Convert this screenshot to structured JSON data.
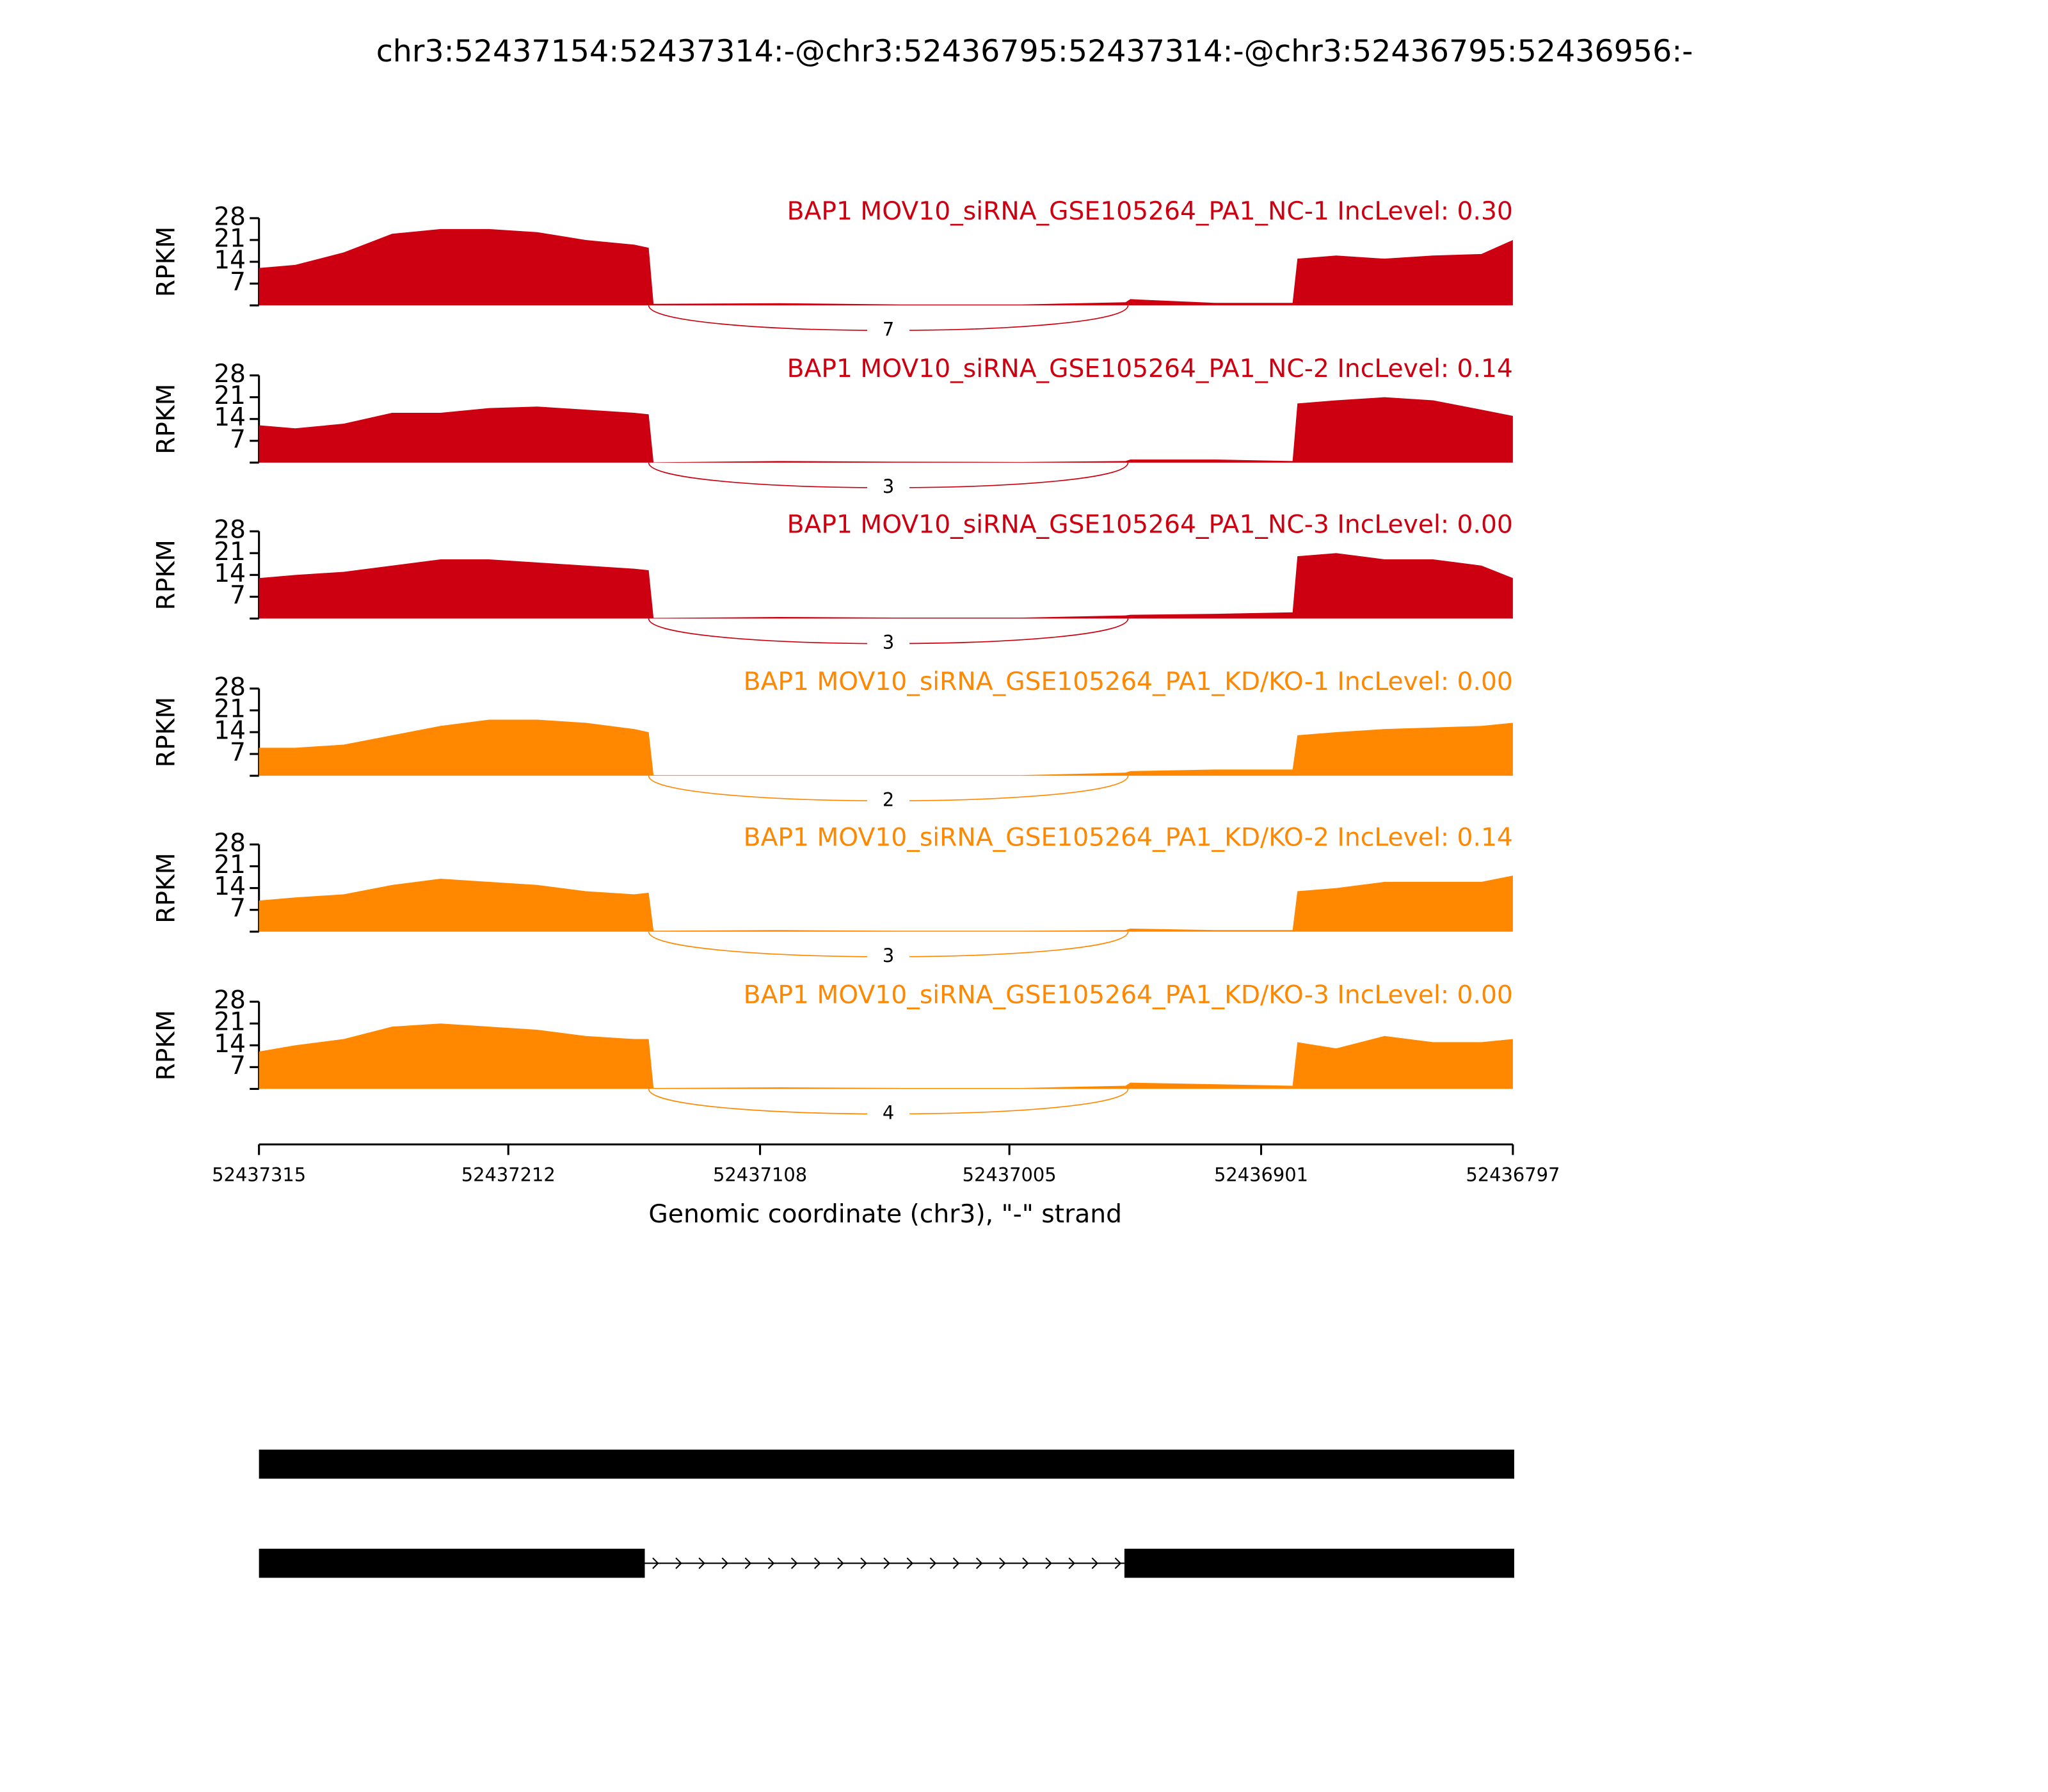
{
  "title": "chr3:52437154:52437314:-@chr3:52436795:52437314:-@chr3:52436795:52436956:-",
  "x_axis": {
    "label": "Genomic coordinate (chr3), \"-\" strand",
    "xlim": [
      52437315,
      52436797
    ],
    "xticks": [
      52437315,
      52437212,
      52437108,
      52437005,
      52436901,
      52436797
    ]
  },
  "chart_data": [
    {
      "type": "area",
      "title": "BAP1 MOV10_siRNA_GSE105264_PA1_NC-1 IncLevel: 0.30",
      "ylabel": "RPKM",
      "color": "#cc0011",
      "ylim": [
        0,
        28
      ],
      "yticks": [
        7,
        14,
        21,
        28
      ],
      "x": [
        52437315,
        52437300,
        52437280,
        52437260,
        52437240,
        52437220,
        52437200,
        52437180,
        52437160,
        52437154,
        52437152,
        52437100,
        52437050,
        52437000,
        52436957,
        52436955,
        52436920,
        52436888,
        52436886,
        52436870,
        52436850,
        52436830,
        52436810,
        52436797
      ],
      "values": [
        12,
        13,
        17,
        23,
        24.5,
        24.5,
        23.5,
        21,
        19.5,
        18.5,
        0.5,
        0.7,
        0.3,
        0.3,
        1,
        2,
        0.8,
        0.8,
        15,
        16,
        15,
        16,
        16.5,
        21
      ],
      "junctions": [
        {
          "start": 52437154,
          "end": 52436956,
          "count": 7
        }
      ]
    },
    {
      "type": "area",
      "title": "BAP1 MOV10_siRNA_GSE105264_PA1_NC-2 IncLevel: 0.14",
      "ylabel": "RPKM",
      "color": "#cc0011",
      "ylim": [
        0,
        28
      ],
      "yticks": [
        7,
        14,
        21,
        28
      ],
      "x": [
        52437315,
        52437300,
        52437280,
        52437260,
        52437240,
        52437220,
        52437200,
        52437180,
        52437160,
        52437154,
        52437152,
        52437100,
        52437050,
        52437000,
        52436957,
        52436955,
        52436920,
        52436888,
        52436886,
        52436870,
        52436850,
        52436830,
        52436810,
        52436797
      ],
      "values": [
        12,
        11,
        12.5,
        16,
        16,
        17.5,
        18,
        17,
        16,
        15.5,
        0.1,
        0.5,
        0.3,
        0.2,
        0.5,
        1,
        1,
        0.5,
        19,
        20,
        21,
        20,
        17,
        15
      ],
      "junctions": [
        {
          "start": 52437154,
          "end": 52436956,
          "count": 3
        }
      ]
    },
    {
      "type": "area",
      "title": "BAP1 MOV10_siRNA_GSE105264_PA1_NC-3 IncLevel: 0.00",
      "ylabel": "RPKM",
      "color": "#cc0011",
      "ylim": [
        0,
        28
      ],
      "yticks": [
        7,
        14,
        21,
        28
      ],
      "x": [
        52437315,
        52437300,
        52437280,
        52437260,
        52437240,
        52437220,
        52437200,
        52437180,
        52437160,
        52437154,
        52437152,
        52437100,
        52437050,
        52437000,
        52436957,
        52436955,
        52436920,
        52436888,
        52436886,
        52436870,
        52436850,
        52436830,
        52436810,
        52436797
      ],
      "values": [
        13,
        14,
        15,
        17,
        19,
        19,
        18,
        17,
        16,
        15.5,
        0.2,
        0.5,
        0.3,
        0.3,
        1,
        1.2,
        1.5,
        2,
        20,
        21,
        19,
        19,
        17,
        13
      ],
      "junctions": [
        {
          "start": 52437154,
          "end": 52436956,
          "count": 3
        }
      ]
    },
    {
      "type": "area",
      "title": "BAP1 MOV10_siRNA_GSE105264_PA1_KD/KO-1 IncLevel: 0.00",
      "ylabel": "RPKM",
      "color": "#ff8800",
      "ylim": [
        0,
        28
      ],
      "yticks": [
        7,
        14,
        21,
        28
      ],
      "x": [
        52437315,
        52437300,
        52437280,
        52437260,
        52437240,
        52437220,
        52437200,
        52437180,
        52437160,
        52437154,
        52437152,
        52437100,
        52437050,
        52437000,
        52436957,
        52436955,
        52436920,
        52436888,
        52436886,
        52436870,
        52436850,
        52436830,
        52436810,
        52436797
      ],
      "values": [
        9,
        9,
        10,
        13,
        16,
        18,
        18,
        17,
        15,
        14,
        0.2,
        0.2,
        0.2,
        0.2,
        1,
        1.5,
        2,
        2,
        13,
        14,
        15,
        15.5,
        16,
        17
      ],
      "junctions": [
        {
          "start": 52437154,
          "end": 52436956,
          "count": 2
        }
      ]
    },
    {
      "type": "area",
      "title": "BAP1 MOV10_siRNA_GSE105264_PA1_KD/KO-2 IncLevel: 0.14",
      "ylabel": "RPKM",
      "color": "#ff8800",
      "ylim": [
        0,
        28
      ],
      "yticks": [
        7,
        14,
        21,
        28
      ],
      "x": [
        52437315,
        52437300,
        52437280,
        52437260,
        52437240,
        52437220,
        52437200,
        52437180,
        52437160,
        52437154,
        52437152,
        52437100,
        52437050,
        52437000,
        52436957,
        52436955,
        52436920,
        52436888,
        52436886,
        52436870,
        52436850,
        52436830,
        52436810,
        52436797
      ],
      "values": [
        10,
        11,
        12,
        15,
        17,
        16,
        15,
        13,
        12,
        12.5,
        0.3,
        0.5,
        0.3,
        0.3,
        0.5,
        1,
        0.5,
        0.5,
        13,
        14,
        16,
        16,
        16,
        18
      ],
      "junctions": [
        {
          "start": 52437154,
          "end": 52436956,
          "count": 3
        }
      ]
    },
    {
      "type": "area",
      "title": "BAP1 MOV10_siRNA_GSE105264_PA1_KD/KO-3 IncLevel: 0.00",
      "ylabel": "RPKM",
      "color": "#ff8800",
      "ylim": [
        0,
        28
      ],
      "yticks": [
        7,
        14,
        21,
        28
      ],
      "x": [
        52437315,
        52437300,
        52437280,
        52437260,
        52437240,
        52437220,
        52437200,
        52437180,
        52437160,
        52437154,
        52437152,
        52437100,
        52437050,
        52437000,
        52436957,
        52436955,
        52436920,
        52436888,
        52436886,
        52436870,
        52436850,
        52436830,
        52436810,
        52436797
      ],
      "values": [
        12,
        14,
        16,
        20,
        21,
        20,
        19,
        17,
        16,
        16,
        0.3,
        0.5,
        0.3,
        0.3,
        1,
        2,
        1.5,
        1,
        15,
        13,
        17,
        15,
        15,
        16
      ],
      "junctions": [
        {
          "start": 52437154,
          "end": 52436956,
          "count": 4
        }
      ]
    }
  ]
}
